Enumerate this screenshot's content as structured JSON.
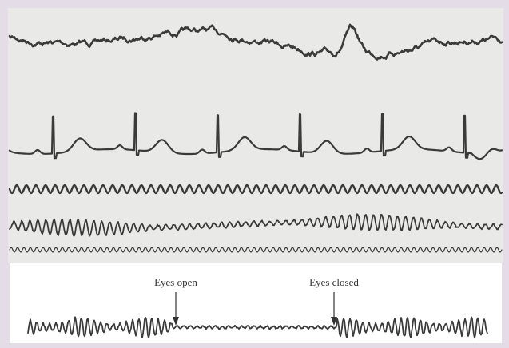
{
  "annotations": {
    "eyes_open": "Eyes open",
    "eyes_closed": "Eyes closed"
  }
}
